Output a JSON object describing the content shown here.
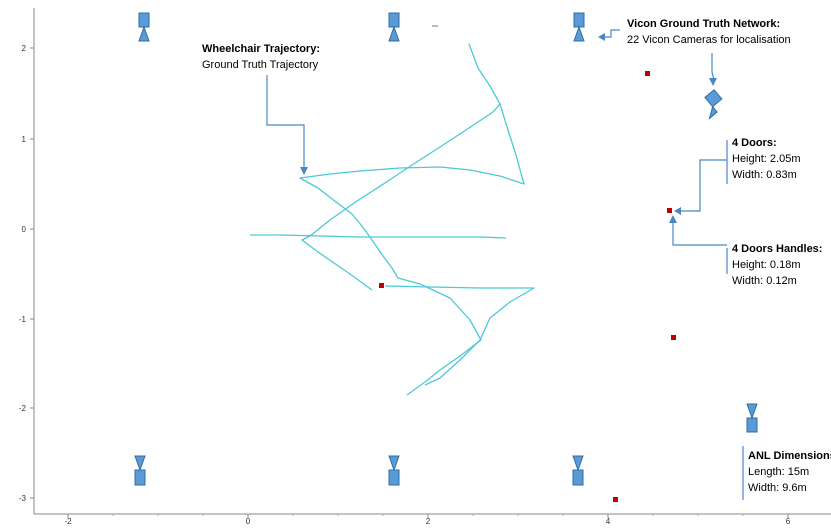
{
  "colors": {
    "trajectory": "#4cc9d6",
    "camera_fill": "#5b9bd5",
    "camera_stroke": "#2e6da4",
    "handle_marker": "#c00000",
    "callout_line": "#4a86c6",
    "axis": "#888888"
  },
  "axes": {
    "y_ticks": [
      "2",
      "1",
      "0",
      "-1",
      "-2",
      "-3"
    ],
    "x_ticks": [
      "-2",
      "0",
      "2",
      "4",
      "6"
    ]
  },
  "annotations": {
    "trajectory": {
      "title": "Wheelchair Trajectory:",
      "lines": [
        "Ground Truth Trajectory"
      ]
    },
    "vicon": {
      "title": "Vicon Ground Truth Network:",
      "lines": [
        "22 Vicon Cameras for localisation"
      ]
    },
    "doors": {
      "title": "4 Doors:",
      "lines": [
        "Height: 2.05m",
        "Width: 0.83m"
      ]
    },
    "handles": {
      "title": "4 Doors Handles:",
      "lines": [
        "Height: 0.18m",
        "Width: 0.12m"
      ]
    },
    "anl": {
      "title": "ANL Dimensions",
      "lines": [
        "Length: 15m",
        "Width: 9.6m"
      ]
    }
  },
  "icons": {
    "camera": "camera-icon",
    "handle": "door-handle-marker-icon"
  },
  "cameras_shown": 9,
  "door_handles_shown": 5
}
